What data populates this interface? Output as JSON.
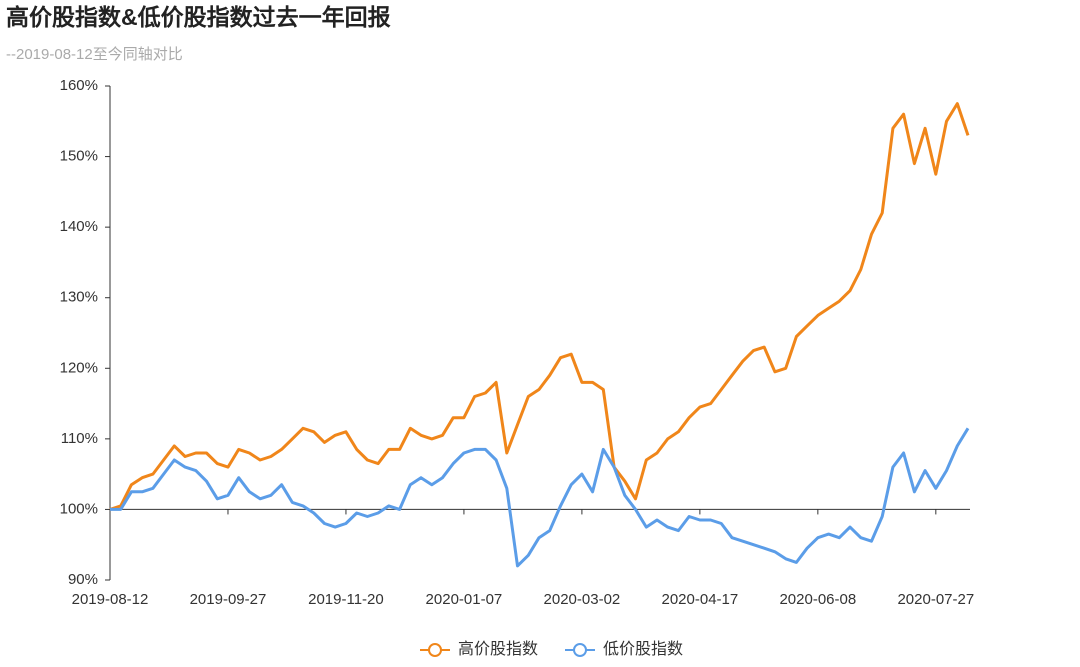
{
  "chart_data": {
    "type": "line",
    "title": "高价股指数&低价股指数过去一年回报",
    "subtitle": "--2019-08-12至今同轴对比",
    "categories": [
      "2019-08-12",
      null,
      null,
      null,
      null,
      null,
      null,
      null,
      null,
      null,
      null,
      "2019-09-27",
      null,
      null,
      null,
      null,
      null,
      null,
      null,
      null,
      null,
      null,
      "2019-11-20",
      null,
      null,
      null,
      null,
      null,
      null,
      null,
      null,
      null,
      null,
      "2020-01-07",
      null,
      null,
      null,
      null,
      null,
      null,
      null,
      null,
      null,
      null,
      "2020-03-02",
      null,
      null,
      null,
      null,
      null,
      null,
      null,
      null,
      null,
      null,
      "2020-04-17",
      null,
      null,
      null,
      null,
      null,
      null,
      null,
      null,
      null,
      null,
      "2020-06-08",
      null,
      null,
      null,
      null,
      null,
      null,
      null,
      null,
      null,
      null,
      "2020-07-27",
      null,
      null,
      null
    ],
    "series": [
      {
        "name": "高价股指数",
        "color": "#f0861a",
        "values": [
          100,
          100.5,
          103.5,
          104.5,
          105,
          107,
          109,
          107.5,
          108,
          108,
          106.5,
          106,
          108.5,
          108,
          107,
          107.5,
          108.5,
          110,
          111.5,
          111,
          109.5,
          110.5,
          111,
          108.5,
          107,
          106.5,
          108.5,
          108.5,
          111.5,
          110.5,
          110,
          110.5,
          113,
          113,
          116,
          116.5,
          118,
          108,
          112,
          116,
          117,
          119,
          121.5,
          122,
          118,
          118,
          117,
          106,
          104,
          101.5,
          107,
          108,
          110,
          111,
          113,
          114.5,
          115,
          117,
          119,
          121,
          122.5,
          123,
          119.5,
          120,
          124.5,
          126,
          127.5,
          128.5,
          129.5,
          131,
          134,
          139,
          142,
          154,
          156,
          149,
          154,
          147.5,
          155,
          157.5,
          153
        ]
      },
      {
        "name": "低价股指数",
        "color": "#5b9de8",
        "values": [
          100,
          100,
          102.5,
          102.5,
          103,
          105,
          107,
          106,
          105.5,
          104,
          101.5,
          102,
          104.5,
          102.5,
          101.5,
          102,
          103.5,
          101,
          100.5,
          99.5,
          98,
          97.5,
          98,
          99.5,
          99,
          99.5,
          100.5,
          100,
          103.5,
          104.5,
          103.5,
          104.5,
          106.5,
          108,
          108.5,
          108.5,
          107,
          103,
          92,
          93.5,
          96,
          97,
          100.5,
          103.5,
          105,
          102.5,
          108.5,
          106,
          102,
          100,
          97.5,
          98.5,
          97.5,
          97,
          99,
          98.5,
          98.5,
          98,
          96,
          95.5,
          95,
          94.5,
          94,
          93,
          92.5,
          94.5,
          96,
          96.5,
          96,
          97.5,
          96,
          95.5,
          99,
          106,
          108,
          102.5,
          105.5,
          103,
          105.5,
          109,
          111.5
        ]
      }
    ],
    "ylim": [
      90,
      160
    ],
    "yticks": [
      {
        "value": 90,
        "label": "90%"
      },
      {
        "value": 100,
        "label": "100%"
      },
      {
        "value": 110,
        "label": "110%"
      },
      {
        "value": 120,
        "label": "120%"
      },
      {
        "value": 130,
        "label": "130%"
      },
      {
        "value": 140,
        "label": "140%"
      },
      {
        "value": 150,
        "label": "150%"
      },
      {
        "value": 160,
        "label": "160%"
      }
    ],
    "grid": false,
    "legend": "bottom"
  }
}
